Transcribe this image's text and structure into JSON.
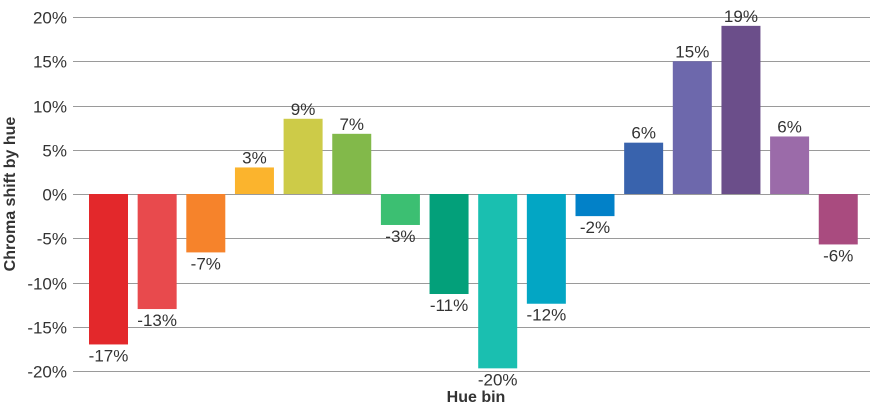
{
  "chart_data": {
    "type": "bar",
    "title": "",
    "xlabel": "Hue bin",
    "ylabel": "Chroma shift by hue",
    "ylim": [
      -20,
      20
    ],
    "yticks": [
      20,
      15,
      10,
      5,
      0,
      -5,
      -10,
      -15,
      -20
    ],
    "ytick_labels": [
      "20%",
      "15%",
      "10%",
      "5%",
      "0%",
      "-5%",
      "-10%",
      "-15%",
      "-20%"
    ],
    "grid": true,
    "legend": "none",
    "values": [
      -17,
      -13,
      -7,
      3,
      9,
      7,
      -3,
      -11,
      -20,
      -12,
      -2,
      6,
      15,
      19,
      6,
      -6
    ],
    "bar_values": [
      -17,
      -13,
      -6.6,
      3,
      8.5,
      6.8,
      -3.5,
      -11.3,
      -19.7,
      -12.4,
      -2.5,
      5.8,
      15,
      19,
      6.5,
      -5.7
    ],
    "data_labels": [
      "-17%",
      "-13%",
      "-7%",
      "3%",
      "9%",
      "7%",
      "-3%",
      "-11%",
      "-20%",
      "-12%",
      "-2%",
      "6%",
      "15%",
      "19%",
      "6%",
      "-6%"
    ],
    "colors": [
      "#e3282b",
      "#e84a4d",
      "#f6832b",
      "#fbb42d",
      "#cdcb48",
      "#82b94a",
      "#3cbf72",
      "#03a07a",
      "#1abfb0",
      "#03a6c4",
      "#0281c8",
      "#3963ad",
      "#6d68ac",
      "#6b4e8a",
      "#9b6ba9",
      "#a94b7f"
    ]
  }
}
